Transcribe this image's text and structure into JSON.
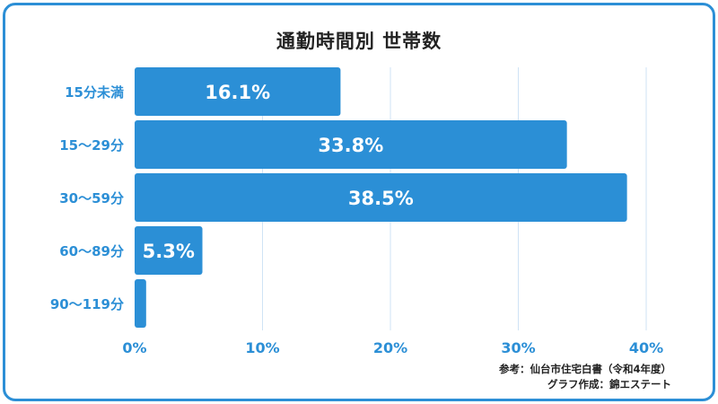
{
  "colors": {
    "bar": "#2b8fd6",
    "frame": "#2c8fd6",
    "axis_text": "#2c8fd6",
    "grid": "#cfe3f5",
    "title_text": "#222222",
    "bar_label": "#ffffff"
  },
  "chart_data": {
    "type": "bar",
    "orientation": "horizontal",
    "title": "通勤時間別 世帯数",
    "categories": [
      "15分未満",
      "15〜29分",
      "30〜59分",
      "60〜89分",
      "90〜119分"
    ],
    "values": [
      16.1,
      33.8,
      38.5,
      5.3,
      0.9
    ],
    "value_labels": [
      "16.1%",
      "33.8%",
      "38.5%",
      "5.3%",
      ""
    ],
    "xlim": [
      0,
      40
    ],
    "xticks": [
      0,
      10,
      20,
      30,
      40
    ],
    "xtick_labels": [
      "0%",
      "10%",
      "20%",
      "30%",
      "40%"
    ],
    "grid": true,
    "legend": "none"
  },
  "source": {
    "line1": "参考：仙台市住宅白書（令和4年度）",
    "line2": "グラフ作成：錦エステート"
  }
}
